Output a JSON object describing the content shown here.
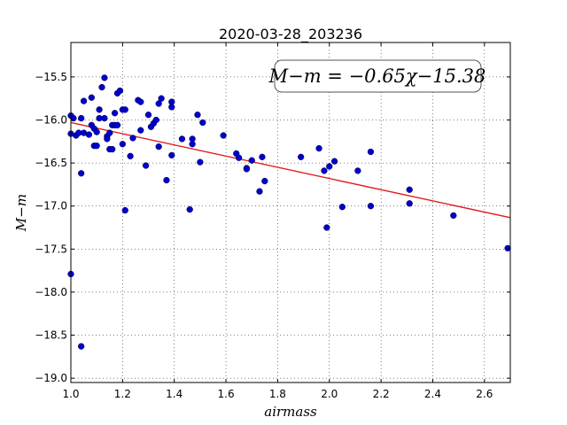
{
  "chart_data": {
    "type": "scatter",
    "title": "2020-03-28_203236",
    "xlabel": "airmass",
    "ylabel": "M−m",
    "xlim": [
      1.0,
      2.7
    ],
    "ylim": [
      -19.05,
      -15.1
    ],
    "y_inverted": false,
    "grid": true,
    "x_ticks": [
      1.0,
      1.2,
      1.4,
      1.6,
      1.8,
      2.0,
      2.2,
      2.4,
      2.6
    ],
    "x_tick_labels": [
      "1.0",
      "1.2",
      "1.4",
      "1.6",
      "1.8",
      "2.0",
      "2.2",
      "2.4",
      "2.6"
    ],
    "y_ticks": [
      -15.5,
      -16.0,
      -16.5,
      -17.0,
      -17.5,
      -18.0,
      -18.5,
      -19.0
    ],
    "y_tick_labels": [
      "−15.5",
      "−16.0",
      "−16.5",
      "−17.0",
      "−17.5",
      "−18.0",
      "−18.5",
      "−19.0"
    ],
    "annotation": "M−m = −0.65χ−15.38",
    "annotation_placement": "top-right",
    "fit": {
      "slope": -0.65,
      "intercept": -15.38,
      "color": "#e31a1c"
    },
    "points_color": "#0000cc",
    "points": [
      [
        1.0,
        -15.95
      ],
      [
        1.0,
        -16.16
      ],
      [
        1.0,
        -17.79
      ],
      [
        1.01,
        -15.98
      ],
      [
        1.02,
        -16.18
      ],
      [
        1.03,
        -16.15
      ],
      [
        1.04,
        -15.98
      ],
      [
        1.04,
        -16.62
      ],
      [
        1.04,
        -18.63
      ],
      [
        1.05,
        -15.78
      ],
      [
        1.05,
        -16.15
      ],
      [
        1.07,
        -16.17
      ],
      [
        1.08,
        -15.74
      ],
      [
        1.08,
        -16.06
      ],
      [
        1.09,
        -16.1
      ],
      [
        1.09,
        -16.3
      ],
      [
        1.1,
        -16.14
      ],
      [
        1.1,
        -16.3
      ],
      [
        1.11,
        -15.88
      ],
      [
        1.11,
        -15.98
      ],
      [
        1.12,
        -15.62
      ],
      [
        1.13,
        -15.51
      ],
      [
        1.13,
        -15.98
      ],
      [
        1.14,
        -16.19
      ],
      [
        1.14,
        -16.22
      ],
      [
        1.15,
        -16.34
      ],
      [
        1.15,
        -16.15
      ],
      [
        1.16,
        -16.06
      ],
      [
        1.16,
        -16.34
      ],
      [
        1.17,
        -15.92
      ],
      [
        1.17,
        -16.06
      ],
      [
        1.18,
        -15.69
      ],
      [
        1.18,
        -16.06
      ],
      [
        1.19,
        -15.66
      ],
      [
        1.2,
        -15.88
      ],
      [
        1.2,
        -16.28
      ],
      [
        1.21,
        -15.88
      ],
      [
        1.21,
        -17.05
      ],
      [
        1.23,
        -16.42
      ],
      [
        1.24,
        -16.21
      ],
      [
        1.26,
        -15.77
      ],
      [
        1.27,
        -15.79
      ],
      [
        1.27,
        -16.12
      ],
      [
        1.29,
        -16.53
      ],
      [
        1.3,
        -15.94
      ],
      [
        1.31,
        -16.08
      ],
      [
        1.32,
        -16.04
      ],
      [
        1.33,
        -16.0
      ],
      [
        1.34,
        -16.31
      ],
      [
        1.34,
        -15.81
      ],
      [
        1.35,
        -15.75
      ],
      [
        1.37,
        -16.7
      ],
      [
        1.39,
        -15.79
      ],
      [
        1.39,
        -15.85
      ],
      [
        1.39,
        -16.41
      ],
      [
        1.43,
        -16.22
      ],
      [
        1.46,
        -17.04
      ],
      [
        1.47,
        -16.22
      ],
      [
        1.47,
        -16.28
      ],
      [
        1.49,
        -15.94
      ],
      [
        1.5,
        -16.49
      ],
      [
        1.51,
        -16.03
      ],
      [
        1.59,
        -16.18
      ],
      [
        1.64,
        -16.39
      ],
      [
        1.65,
        -16.44
      ],
      [
        1.68,
        -16.56
      ],
      [
        1.68,
        -16.57
      ],
      [
        1.7,
        -16.47
      ],
      [
        1.73,
        -16.83
      ],
      [
        1.74,
        -16.43
      ],
      [
        1.75,
        -16.71
      ],
      [
        1.89,
        -16.43
      ],
      [
        1.96,
        -16.33
      ],
      [
        1.98,
        -16.59
      ],
      [
        1.99,
        -17.25
      ],
      [
        2.0,
        -16.54
      ],
      [
        2.02,
        -16.48
      ],
      [
        2.05,
        -17.01
      ],
      [
        2.11,
        -16.59
      ],
      [
        2.16,
        -17.0
      ],
      [
        2.16,
        -16.37
      ],
      [
        2.31,
        -16.81
      ],
      [
        2.31,
        -16.97
      ],
      [
        2.48,
        -17.11
      ],
      [
        2.69,
        -17.49
      ]
    ]
  }
}
